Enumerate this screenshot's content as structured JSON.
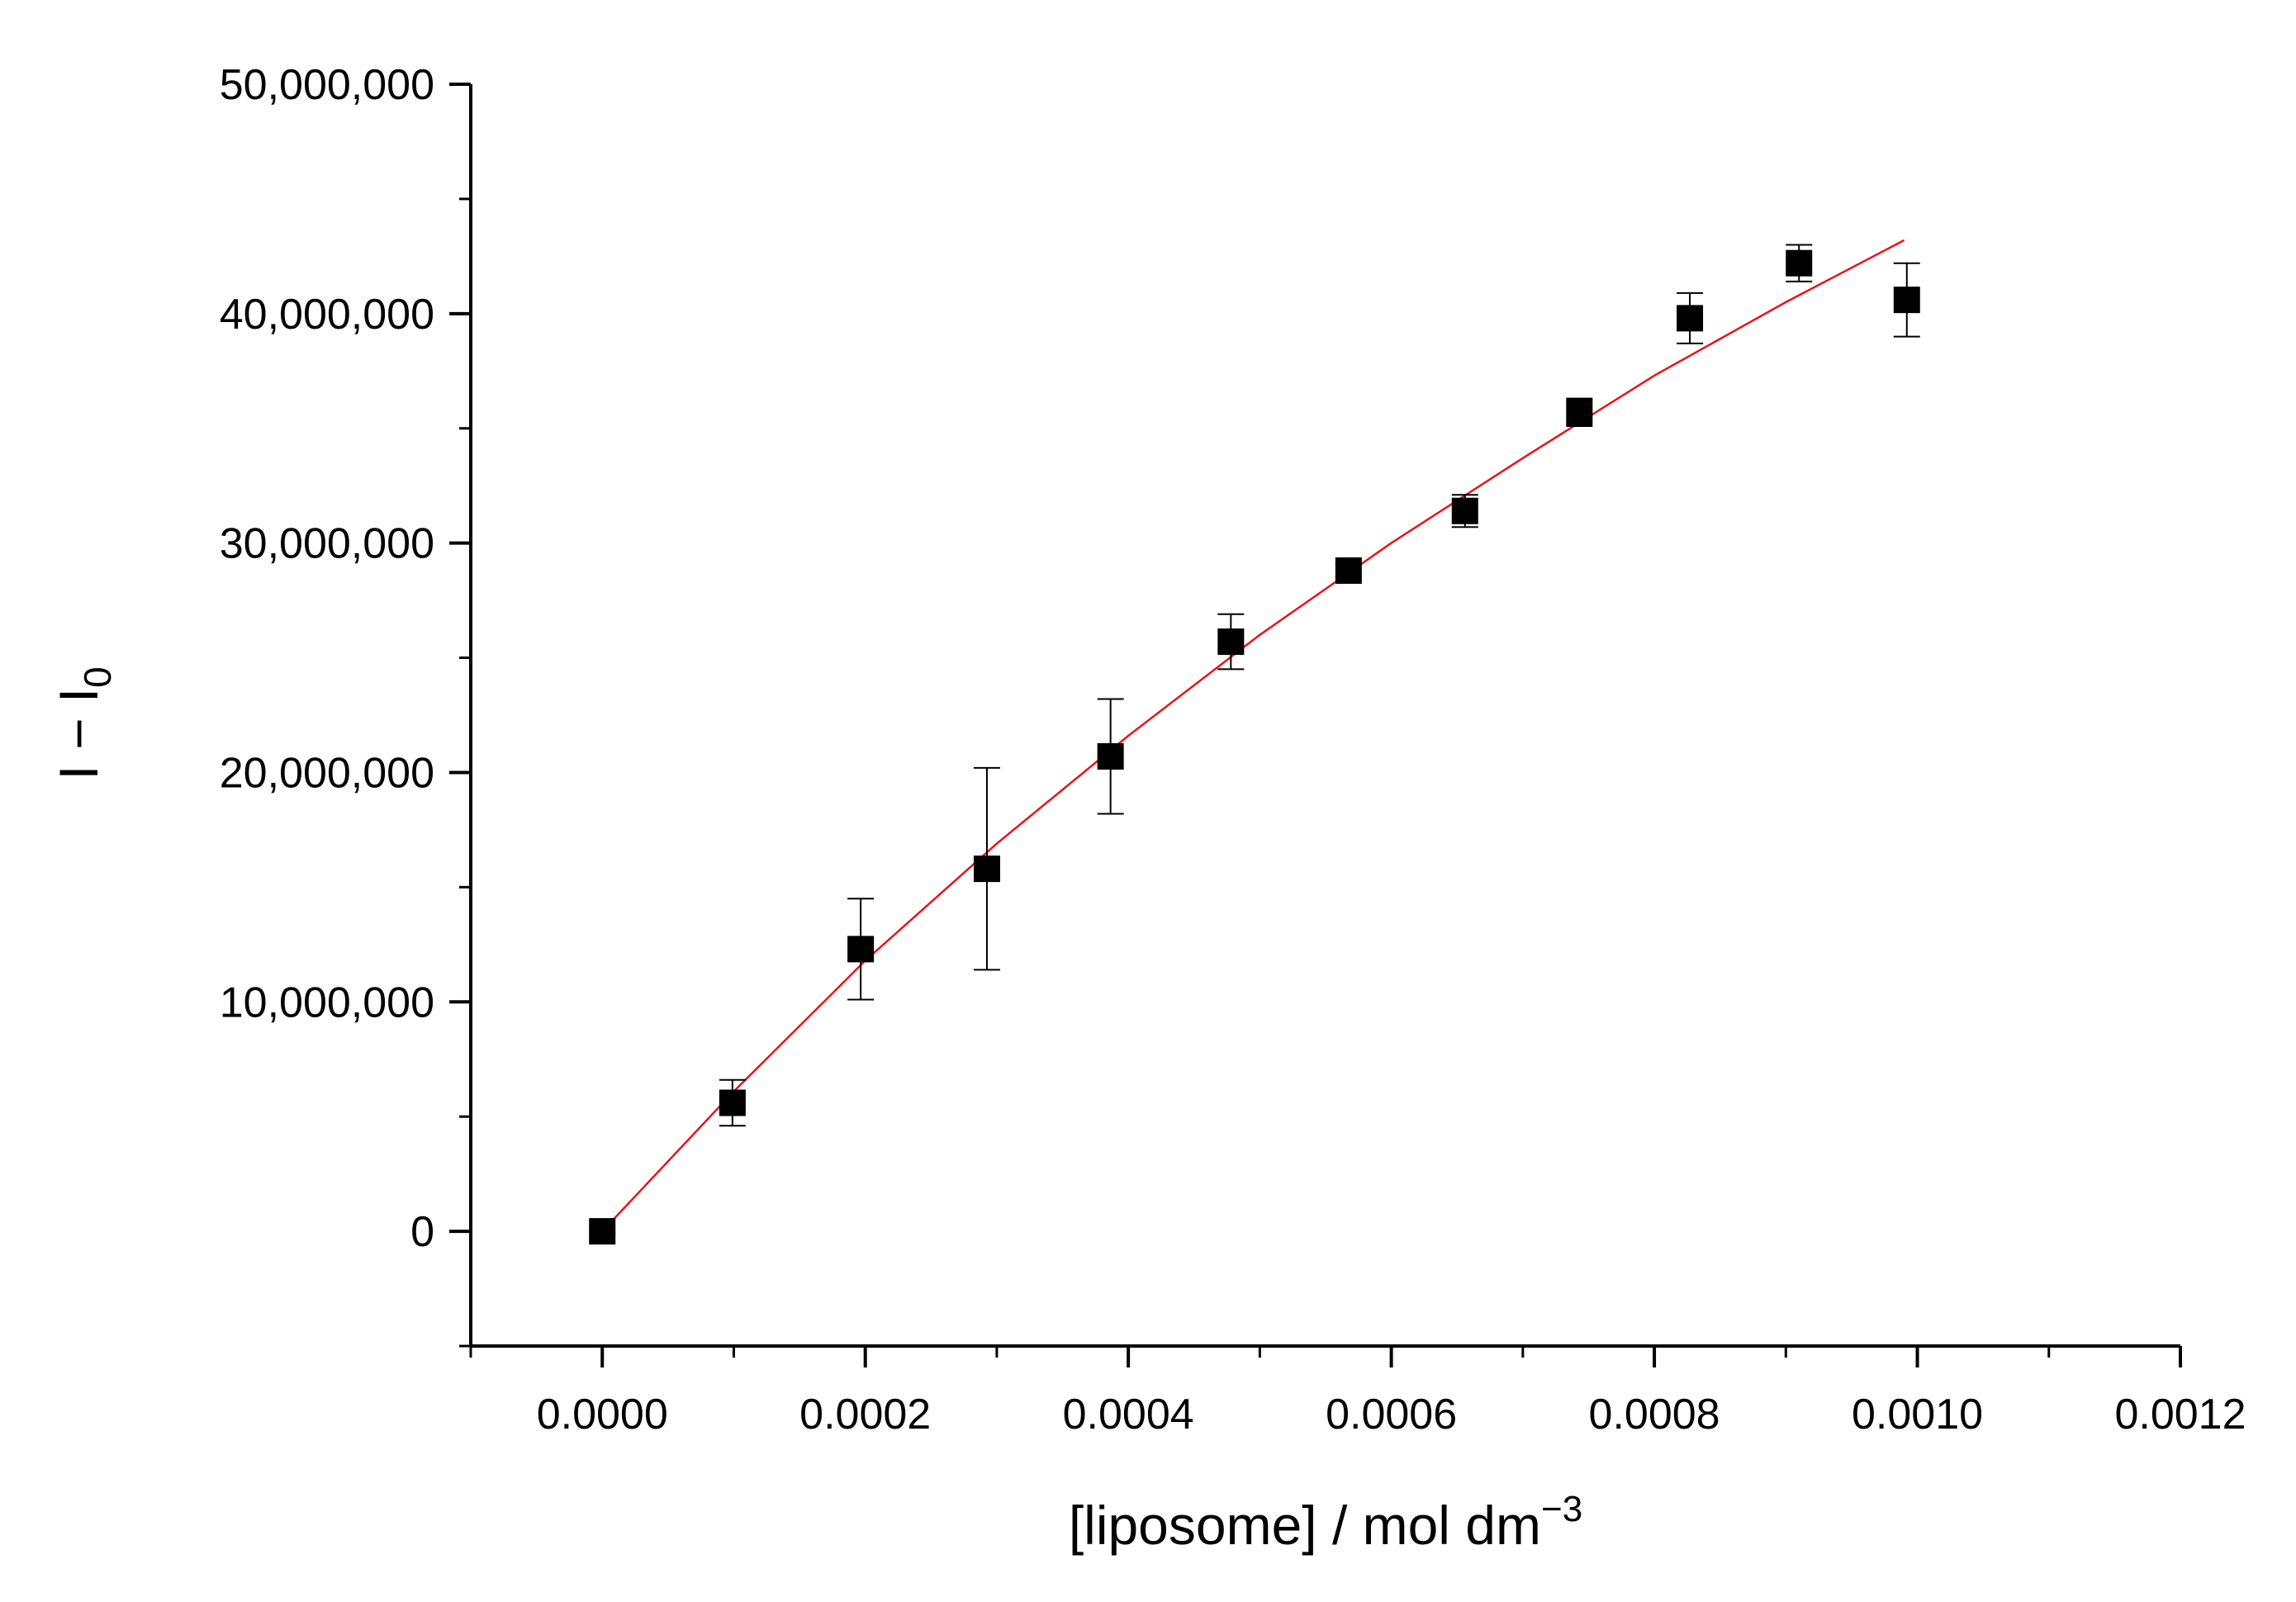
{
  "chart_data": {
    "type": "scatter",
    "title": "",
    "xlabel": "[liposome] / mol dm",
    "xlabel_superscript": "−3",
    "ylabel_base": "I − I",
    "ylabel_subscript": "0",
    "xlim": [
      -0.0001,
      0.0012
    ],
    "ylim": [
      -5000000,
      50000000
    ],
    "x_ticks": [
      0.0,
      0.0002,
      0.0004,
      0.0006,
      0.0008,
      0.001,
      0.0012
    ],
    "x_tick_labels": [
      "0.0000",
      "0.0002",
      "0.0004",
      "0.0006",
      "0.0008",
      "0.0010",
      "0.0012"
    ],
    "y_ticks": [
      0,
      10000000,
      20000000,
      30000000,
      40000000,
      50000000
    ],
    "y_tick_labels": [
      "0",
      "10,000,000",
      "20,000,000",
      "30,000,000",
      "40,000,000",
      "50,000,000"
    ],
    "grid": false,
    "legend": "none",
    "series": [
      {
        "type": "scatter",
        "marker": "square",
        "color": "#000000",
        "x": [
          0.0,
          9.9e-05,
          0.0001965,
          0.0002925,
          0.0003865,
          0.000478,
          0.0005675,
          0.000656,
          0.000743,
          0.000827,
          0.00091,
          0.000992
        ],
        "y": [
          0,
          5600000,
          12300000,
          15800000,
          20700000,
          25700000,
          28800000,
          31400000,
          35700000,
          39800000,
          42200000,
          40600000
        ],
        "yerr": [
          100000,
          1000000,
          2200000,
          4400000,
          2500000,
          1200000,
          250000,
          700000,
          600000,
          1100000,
          800000,
          1600000
        ]
      },
      {
        "type": "line",
        "color": "#e8141b",
        "x": [
          0.0,
          0.0001,
          0.0002,
          0.0003,
          0.0004,
          0.0005,
          0.0006,
          0.0007,
          0.0008,
          0.0009,
          0.00099
        ],
        "y": [
          0,
          6100000,
          11800000,
          16900000,
          21600000,
          26000000,
          30000000,
          33700000,
          37300000,
          40500000,
          43200000
        ]
      }
    ]
  }
}
